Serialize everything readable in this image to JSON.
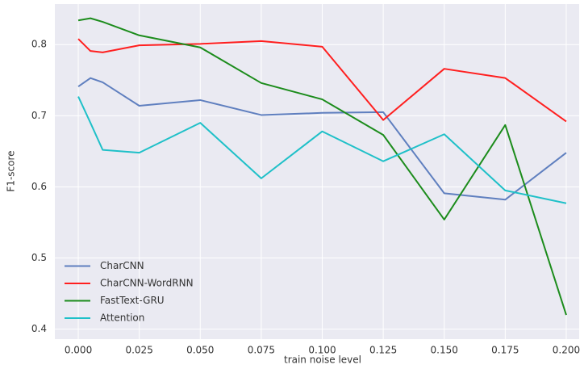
{
  "chart_data": {
    "type": "line",
    "xlabel": "train noise level",
    "ylabel": "F1-score",
    "x": [
      0,
      0.005,
      0.01,
      0.025,
      0.05,
      0.075,
      0.1,
      0.125,
      0.15,
      0.175,
      0.2
    ],
    "series": [
      {
        "name": "CharCNN",
        "color": "#5f7fbf",
        "values": [
          0.741,
          0.753,
          0.747,
          0.714,
          0.722,
          0.701,
          0.704,
          0.705,
          0.591,
          0.582,
          0.648
        ]
      },
      {
        "name": "CharCNN-WordRNN",
        "color": "#ff1f1f",
        "values": [
          0.808,
          0.791,
          0.789,
          0.799,
          0.801,
          0.805,
          0.797,
          0.694,
          0.766,
          0.753,
          0.692
        ]
      },
      {
        "name": "FastText-GRU",
        "color": "#1c8c1c",
        "values": [
          0.834,
          0.837,
          0.832,
          0.813,
          0.796,
          0.746,
          0.723,
          0.673,
          0.554,
          0.687,
          0.42
        ]
      },
      {
        "name": "Attention",
        "color": "#1fc0c8",
        "values": [
          0.727,
          0.69,
          0.652,
          0.648,
          0.69,
          0.612,
          0.678,
          0.636,
          0.674,
          0.595,
          0.577
        ]
      }
    ],
    "xlim": [
      -0.0096,
      0.2053
    ],
    "ylim": [
      0.386,
      0.857
    ],
    "xticks": [
      {
        "value": 0,
        "label": "0.000"
      },
      {
        "value": 0.025,
        "label": "0.025"
      },
      {
        "value": 0.05,
        "label": "0.050"
      },
      {
        "value": 0.075,
        "label": "0.075"
      },
      {
        "value": 0.1,
        "label": "0.100"
      },
      {
        "value": 0.125,
        "label": "0.125"
      },
      {
        "value": 0.15,
        "label": "0.150"
      },
      {
        "value": 0.175,
        "label": "0.175"
      },
      {
        "value": 0.2,
        "label": "0.200"
      }
    ],
    "yticks": [
      0.4,
      0.5,
      0.6,
      0.7,
      0.8
    ],
    "grid": true,
    "legend": "lower left"
  }
}
